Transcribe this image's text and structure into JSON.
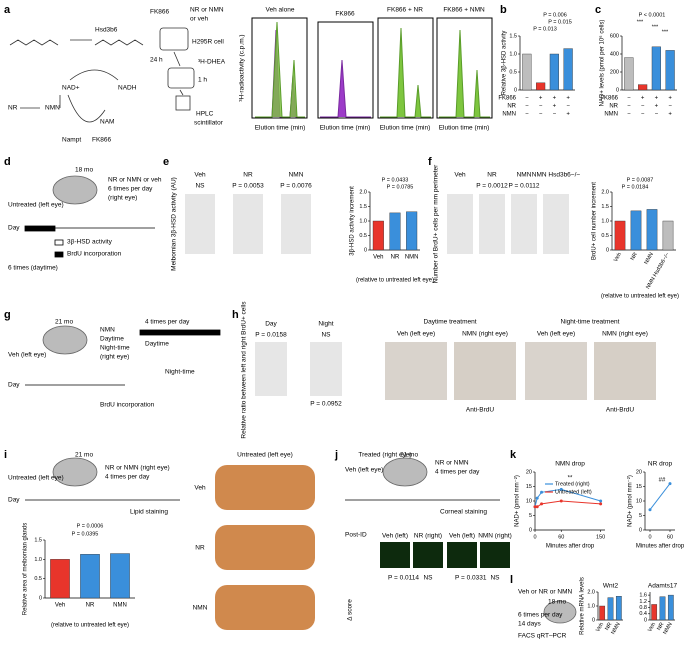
{
  "texts": [
    "a",
    "Hsd3b6",
    "NAD+",
    "NADH",
    "NR",
    "NMN",
    "NAM",
    "Nampt",
    "FK866",
    "FK866",
    "NR or NMN",
    "or veh",
    "H295R cell",
    "24 h",
    "³H-DHEA",
    "1 h",
    "HPLC",
    "scintillator",
    "Veh alone",
    "FK866",
    "FK866 + NR",
    "FK866 + NMN",
    "Elution time (min)",
    "Elution time (min)",
    "Elution time (min)",
    "Elution time (min)",
    "³H-radioactivity (c.p.m.)",
    "b",
    "c",
    "d",
    "Untreated (left eye)",
    "18 mo",
    "NR or NMN or veh",
    "6 times per day",
    "(right eye)",
    "Day",
    "3β-HSD activity",
    "BrdU incorporation",
    "6 times (daytime)",
    "e",
    "Veh",
    "NR",
    "NMN",
    "NS",
    "P = 0.0053",
    "P = 0.0076",
    "Meibomian 3β-HSD activity (AU)",
    "f",
    "Veh",
    "NR",
    "NMN",
    "NMN Hsd3b6−/−",
    "P = 0.0012",
    "P = 0.0112",
    "Number of BrdU+ cells per mm perimeter",
    "g",
    "Veh (left eye)",
    "21 mo",
    "NMN",
    "Daytime",
    "Night-time",
    "(right eye)",
    "4 times per day",
    "Daytime",
    "Night-time",
    "BrdU incorporation",
    "Day",
    "h",
    "Day",
    "Night",
    "P = 0.0158",
    "NS",
    "P = 0.0952",
    "Relative ratio between left and right BrdU+ cells",
    "Daytime treatment",
    "Night-time treatment",
    "Veh (left eye)",
    "NMN (right eye)",
    "Veh (left eye)",
    "NMN (right eye)",
    "Anti-BrdU",
    "Anti-BrdU",
    "i",
    "Untreated (left eye)",
    "21 mo",
    "NR or NMN (right eye)",
    "4 times per day",
    "Day",
    "Lipid staining",
    "Untreated (left eye)",
    "Treated (right eye)",
    "Veh",
    "NR",
    "NMN",
    "j",
    "Veh (left eye)",
    "21 mo",
    "NR or NMN",
    "4 times per day",
    "Corneal staining",
    "Post-ID",
    "Veh (left)",
    "NR (right)",
    "Veh (left)",
    "NMN (right)",
    "Δ score",
    "P = 0.0114",
    "NS",
    "P = 0.0331",
    "NS",
    "k",
    "l",
    "Veh or NR or NMN",
    "18 mo",
    "6 times per day",
    "14 days",
    "FACS qRT–PCR"
  ],
  "charts": [
    {
      "type": "bar",
      "ylabel": "Relative 3β-HSD activity",
      "values": [
        1.0,
        0.2,
        1.0,
        1.15
      ],
      "colors": [
        "#bdbdbd",
        "#e8352b",
        "#3a8fdb",
        "#3a8fdb"
      ],
      "ylim": [
        0,
        1.5
      ],
      "yticks": [
        0,
        0.5,
        {
          "value": 1,
          "label": "1.0"
        },
        1.5
      ],
      "annotations": [
        "P = 0.006",
        "P = 0.015",
        "P = 0.013"
      ],
      "rows": [
        {
          "name": "FK866",
          "marks": [
            "−",
            "+",
            "+",
            "+"
          ]
        },
        {
          "name": "NR",
          "marks": [
            "−",
            "−",
            "+",
            "−"
          ]
        },
        {
          "name": "NMN",
          "marks": [
            "−",
            "−",
            "−",
            "+"
          ]
        }
      ]
    },
    {
      "type": "bar",
      "ylabel": "NAD+ levels (pmol per 10⁶ cells)",
      "values": [
        360,
        60,
        480,
        440
      ],
      "colors": [
        "#bdbdbd",
        "#e8352b",
        "#3a8fdb",
        "#3a8fdb"
      ],
      "ylim": [
        0,
        600
      ],
      "yticks": [
        0,
        200,
        400,
        600
      ],
      "annotations": [
        "P < 0.0001",
        "***",
        "***",
        "***"
      ],
      "rows": [
        {
          "name": "FK866",
          "marks": [
            "−",
            "+",
            "+",
            "+"
          ]
        },
        {
          "name": "NR",
          "marks": [
            "−",
            "−",
            "+",
            "−"
          ]
        },
        {
          "name": "NMN",
          "marks": [
            "−",
            "−",
            "−",
            "+"
          ]
        }
      ]
    },
    {
      "type": "bar",
      "ylabel": "3β-HSD activity increment",
      "categories": [
        "Veh",
        "NR",
        "NMN"
      ],
      "values": [
        1.0,
        1.28,
        1.32
      ],
      "colors": [
        "#e8352b",
        "#3a8fdb",
        "#3a8fdb"
      ],
      "ylim": [
        0,
        2
      ],
      "yticks": [
        0,
        0.5,
        {
          "value": 1,
          "label": "1.0"
        },
        1.5,
        {
          "value": 2,
          "label": "2.0"
        }
      ],
      "annotations": [
        "P = 0.0433",
        "P = 0.0785"
      ],
      "note": "(relative to untreated left eye)"
    },
    {
      "type": "bar",
      "ylabel": "BrdU+ cell number increment",
      "categories": [
        "Veh",
        "NR",
        "NMN",
        "NMN Hsd3b6−/−"
      ],
      "values": [
        1.0,
        1.35,
        1.4,
        1.0
      ],
      "colors": [
        "#e8352b",
        "#3a8fdb",
        "#3a8fdb",
        "#bdbdbd"
      ],
      "ylim": [
        0,
        2
      ],
      "yticks": [
        0,
        0.5,
        {
          "value": 1,
          "label": "1.0"
        },
        1.5,
        {
          "value": 2,
          "label": "2.0"
        }
      ],
      "annotations": [
        "P = 0.0087",
        "P = 0.0184"
      ],
      "note": "(relative to untreated left eye)"
    },
    {
      "type": "bar",
      "ylabel": "Relative area of meibomian glands",
      "categories": [
        "Veh",
        "NR",
        "NMN"
      ],
      "values": [
        1.0,
        1.13,
        1.15
      ],
      "colors": [
        "#e8352b",
        "#3a8fdb",
        "#3a8fdb"
      ],
      "ylim": [
        0,
        1.5
      ],
      "yticks": [
        0,
        0.5,
        {
          "value": 1,
          "label": "1.0"
        },
        1.5
      ],
      "annotations": [
        "P = 0.0006",
        "P = 0.0395"
      ],
      "note": "(relative to untreated left eye)"
    },
    {
      "type": "line",
      "title": "NMN drop",
      "xlabel": "Minutes after drop",
      "ylabel": "NAD+ (pmol mm⁻²)",
      "x": [
        0,
        5,
        15,
        60,
        150
      ],
      "xlim": [
        0,
        160
      ],
      "xticks": [
        0,
        60,
        150
      ],
      "ylim": [
        0,
        20
      ],
      "yticks": [
        0,
        5,
        10,
        15,
        20
      ],
      "series": [
        {
          "name": "Treated (right)",
          "color": "#3a8fdb",
          "values": [
            8,
            11,
            13,
            14,
            10
          ]
        },
        {
          "name": "Untreated (left)",
          "color": "#e8352b",
          "values": [
            8,
            8,
            9,
            10,
            9
          ]
        }
      ],
      "annotations": [
        "**"
      ]
    },
    {
      "type": "line",
      "title": "NR drop",
      "xlabel": "Minutes after drop",
      "ylabel": "NAD+ (pmol mm⁻²)",
      "x": [
        0,
        60
      ],
      "xlim": [
        -15,
        75
      ],
      "xticks": [
        0,
        60
      ],
      "ylim": [
        0,
        20
      ],
      "yticks": [
        0,
        5,
        10,
        15,
        20
      ],
      "series": [
        {
          "color": "#3a8fdb",
          "values": [
            7,
            16
          ]
        }
      ],
      "annotations": [
        "##"
      ]
    },
    {
      "type": "bar",
      "title": "Wnt2",
      "ylabel": "Relative mRNA levels",
      "categories": [
        "Veh",
        "NR",
        "NMN"
      ],
      "values": [
        1.0,
        1.6,
        1.7
      ],
      "colors": [
        "#e8352b",
        "#3a8fdb",
        "#3a8fdb"
      ],
      "ylim": [
        0,
        2
      ],
      "yticks": [
        0,
        {
          "value": 1,
          "label": "1.0"
        },
        {
          "value": 2,
          "label": "2.0"
        }
      ]
    },
    {
      "type": "bar",
      "title": "Adamts17",
      "categories": [
        "Veh",
        "NR",
        "NMN"
      ],
      "values": [
        1.0,
        1.5,
        1.6
      ],
      "colors": [
        "#e8352b",
        "#3a8fdb",
        "#3a8fdb"
      ],
      "ylim": [
        0,
        1.8
      ],
      "yticks": [
        0,
        0.4,
        0.8,
        1.2,
        1.6
      ]
    }
  ]
}
